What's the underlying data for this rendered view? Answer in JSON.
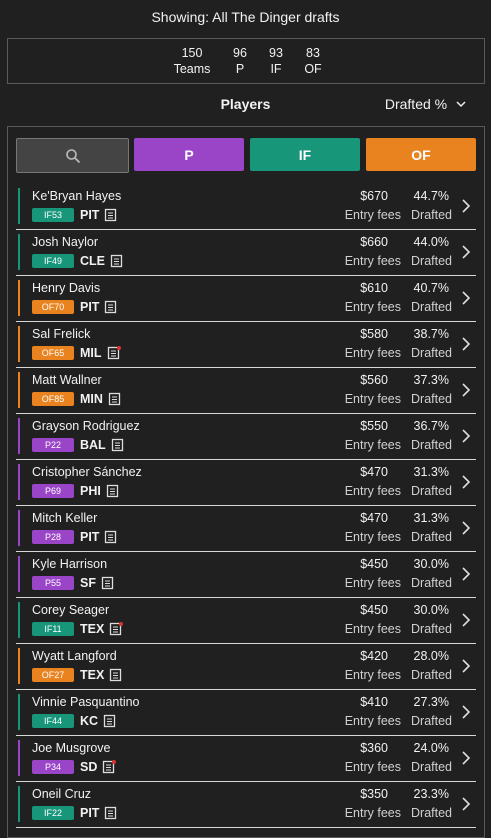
{
  "header": {
    "title": "Showing: All The Dinger drafts"
  },
  "stats": [
    {
      "value": 150,
      "label": "Teams"
    },
    {
      "value": 96,
      "label": "P"
    },
    {
      "value": 93,
      "label": "IF"
    },
    {
      "value": 83,
      "label": "OF"
    }
  ],
  "section": {
    "title": "Players",
    "sort": "Drafted %"
  },
  "filters": [
    {
      "label": "P",
      "color": "#9a45c8"
    },
    {
      "label": "IF",
      "color": "#17967a"
    },
    {
      "label": "OF",
      "color": "#e8831f"
    }
  ],
  "labels": {
    "fees": "Entry fees",
    "drafted": "Drafted"
  },
  "players": [
    {
      "name": "Ke'Bryan Hayes",
      "tag": "IF53",
      "team": "PIT",
      "fee": "$670",
      "drafted": "44.7%",
      "color": "#17967a",
      "alert": false
    },
    {
      "name": "Josh Naylor",
      "tag": "IF49",
      "team": "CLE",
      "fee": "$660",
      "drafted": "44.0%",
      "color": "#17967a",
      "alert": false
    },
    {
      "name": "Henry Davis",
      "tag": "OF70",
      "team": "PIT",
      "fee": "$610",
      "drafted": "40.7%",
      "color": "#e8831f",
      "alert": false
    },
    {
      "name": "Sal Frelick",
      "tag": "OF65",
      "team": "MIL",
      "fee": "$580",
      "drafted": "38.7%",
      "color": "#e8831f",
      "alert": true
    },
    {
      "name": "Matt Wallner",
      "tag": "OF85",
      "team": "MIN",
      "fee": "$560",
      "drafted": "37.3%",
      "color": "#e8831f",
      "alert": false
    },
    {
      "name": "Grayson Rodriguez",
      "tag": "P22",
      "team": "BAL",
      "fee": "$550",
      "drafted": "36.7%",
      "color": "#9a45c8",
      "alert": false
    },
    {
      "name": "Cristopher Sánchez",
      "tag": "P69",
      "team": "PHI",
      "fee": "$470",
      "drafted": "31.3%",
      "color": "#9a45c8",
      "alert": false
    },
    {
      "name": "Mitch Keller",
      "tag": "P28",
      "team": "PIT",
      "fee": "$470",
      "drafted": "31.3%",
      "color": "#9a45c8",
      "alert": false
    },
    {
      "name": "Kyle Harrison",
      "tag": "P55",
      "team": "SF",
      "fee": "$450",
      "drafted": "30.0%",
      "color": "#9a45c8",
      "alert": false
    },
    {
      "name": "Corey Seager",
      "tag": "IF11",
      "team": "TEX",
      "fee": "$450",
      "drafted": "30.0%",
      "color": "#17967a",
      "alert": true
    },
    {
      "name": "Wyatt Langford",
      "tag": "OF27",
      "team": "TEX",
      "fee": "$420",
      "drafted": "28.0%",
      "color": "#e8831f",
      "alert": false
    },
    {
      "name": "Vinnie Pasquantino",
      "tag": "IF44",
      "team": "KC",
      "fee": "$410",
      "drafted": "27.3%",
      "color": "#17967a",
      "alert": false
    },
    {
      "name": "Joe Musgrove",
      "tag": "P34",
      "team": "SD",
      "fee": "$360",
      "drafted": "24.0%",
      "color": "#9a45c8",
      "alert": true
    },
    {
      "name": "Oneil Cruz",
      "tag": "IF22",
      "team": "PIT",
      "fee": "$350",
      "drafted": "23.3%",
      "color": "#17967a",
      "alert": false
    }
  ]
}
